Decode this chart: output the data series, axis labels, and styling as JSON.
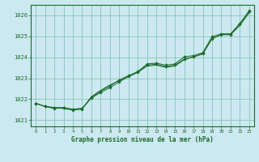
{
  "background_color": "#cce8f0",
  "plot_bg_color": "#cce8f0",
  "grid_color": "#7abfaa",
  "line_color": "#1a6b2a",
  "title": "Graphe pression niveau de la mer (hPa)",
  "xlim": [
    -0.5,
    23.5
  ],
  "ylim": [
    1020.7,
    1026.5
  ],
  "yticks": [
    1021,
    1022,
    1023,
    1024,
    1025,
    1026
  ],
  "xticks": [
    0,
    1,
    2,
    3,
    4,
    5,
    6,
    7,
    8,
    9,
    10,
    11,
    12,
    13,
    14,
    15,
    16,
    17,
    18,
    19,
    20,
    21,
    22,
    23
  ],
  "series1": [
    1021.8,
    1021.65,
    1021.6,
    1021.6,
    1021.52,
    1021.57,
    1022.05,
    1022.32,
    1022.55,
    1022.82,
    1023.08,
    1023.28,
    1023.62,
    1023.67,
    1023.55,
    1023.62,
    1023.92,
    1024.02,
    1024.18,
    1024.88,
    1025.08,
    1025.08,
    1025.58,
    1026.18
  ],
  "series2": [
    1021.8,
    1021.65,
    1021.55,
    1021.58,
    1021.48,
    1021.53,
    1022.08,
    1022.38,
    1022.62,
    1022.92,
    1023.12,
    1023.32,
    1023.68,
    1023.72,
    1023.62,
    1023.68,
    1024.02,
    1024.08,
    1024.22,
    1024.98,
    1025.12,
    1025.12,
    1025.62,
    1026.22
  ],
  "series3": [
    1021.8,
    1021.65,
    1021.6,
    1021.55,
    1021.48,
    1021.53,
    1022.12,
    1022.42,
    1022.68,
    1022.88,
    1023.08,
    1023.28,
    1023.58,
    1023.62,
    1023.52,
    1023.58,
    1023.88,
    1024.02,
    1024.15,
    1024.9,
    1025.08,
    1025.08,
    1025.52,
    1026.12
  ]
}
